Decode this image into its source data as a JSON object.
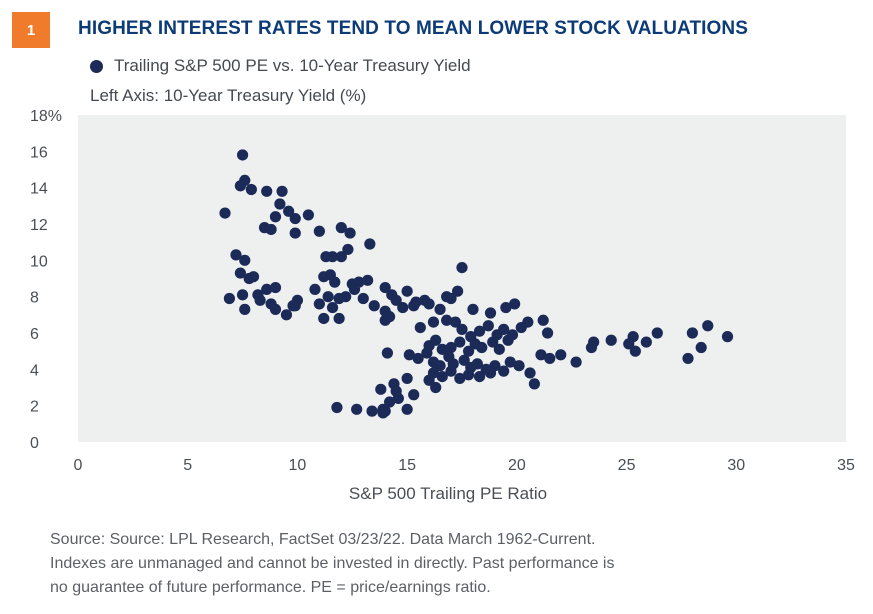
{
  "badge": "1",
  "title": "HIGHER INTEREST RATES TEND TO MEAN LOWER STOCK VALUATIONS",
  "legend_label": "Trailing S&P 500 PE vs. 10-Year Treasury Yield",
  "axis_note": "Left Axis: 10-Year Treasury Yield (%)",
  "footnotes": [
    "Source: Source: LPL Research, FactSet  03/23/22. Data March 1962-Current.",
    "Indexes are unmanaged and cannot be invested in directly. Past performance is",
    "no guarantee of future performance. PE = price/earnings ratio."
  ],
  "colors": {
    "title": "#0d3b78",
    "badge": "#f07b2b",
    "dot": "#1b2a57",
    "plot_bg": "#eef0f0"
  },
  "chart_data": {
    "type": "scatter",
    "title": "",
    "xlabel": "S&P 500 Trailing PE Ratio",
    "ylabel": "",
    "xlim": [
      0,
      35
    ],
    "ylim": [
      0,
      18
    ],
    "x_ticks": [
      "0",
      "5",
      "10",
      "15",
      "20",
      "25",
      "30",
      "35"
    ],
    "y_ticks": [
      "0",
      "2",
      "4",
      "6",
      "8",
      "10",
      "12",
      "14",
      "16",
      "18%"
    ],
    "grid": false,
    "series": [
      {
        "name": "Trailing S&P 500 PE vs. 10-Year Treasury Yield",
        "points": [
          [
            7.5,
            15.8
          ],
          [
            7.6,
            14.4
          ],
          [
            7.4,
            14.1
          ],
          [
            7.9,
            13.9
          ],
          [
            8.6,
            13.8
          ],
          [
            9.3,
            13.8
          ],
          [
            9.2,
            13.1
          ],
          [
            9.6,
            12.7
          ],
          [
            10.5,
            12.5
          ],
          [
            9.9,
            12.3
          ],
          [
            9.0,
            12.4
          ],
          [
            6.7,
            12.6
          ],
          [
            8.5,
            11.8
          ],
          [
            8.8,
            11.7
          ],
          [
            11.0,
            11.6
          ],
          [
            12.0,
            11.8
          ],
          [
            9.9,
            11.5
          ],
          [
            12.4,
            11.5
          ],
          [
            12.3,
            10.6
          ],
          [
            13.3,
            10.9
          ],
          [
            7.2,
            10.3
          ],
          [
            7.6,
            10.0
          ],
          [
            11.3,
            10.2
          ],
          [
            11.6,
            10.2
          ],
          [
            12.0,
            10.2
          ],
          [
            7.4,
            9.3
          ],
          [
            7.8,
            9.0
          ],
          [
            8.0,
            9.1
          ],
          [
            11.2,
            9.1
          ],
          [
            11.5,
            9.2
          ],
          [
            11.7,
            8.8
          ],
          [
            12.5,
            8.7
          ],
          [
            12.8,
            8.8
          ],
          [
            13.2,
            8.9
          ],
          [
            14.0,
            8.5
          ],
          [
            17.5,
            9.6
          ],
          [
            6.9,
            7.9
          ],
          [
            7.5,
            8.1
          ],
          [
            8.2,
            8.1
          ],
          [
            8.6,
            8.4
          ],
          [
            9.0,
            8.5
          ],
          [
            8.3,
            7.8
          ],
          [
            8.8,
            7.6
          ],
          [
            9.0,
            7.3
          ],
          [
            7.6,
            7.3
          ],
          [
            9.5,
            7.0
          ],
          [
            9.8,
            7.5
          ],
          [
            10.0,
            7.8
          ],
          [
            9.9,
            7.5
          ],
          [
            10.8,
            8.4
          ],
          [
            11.0,
            7.6
          ],
          [
            11.4,
            8.0
          ],
          [
            11.6,
            7.4
          ],
          [
            11.2,
            6.8
          ],
          [
            11.9,
            7.9
          ],
          [
            12.2,
            8.0
          ],
          [
            12.6,
            8.4
          ],
          [
            11.9,
            6.8
          ],
          [
            13.0,
            7.9
          ],
          [
            13.5,
            7.5
          ],
          [
            14.0,
            7.2
          ],
          [
            14.5,
            7.8
          ],
          [
            14.3,
            8.1
          ],
          [
            15.0,
            8.3
          ],
          [
            14.8,
            7.4
          ],
          [
            15.4,
            7.7
          ],
          [
            15.8,
            7.8
          ],
          [
            14.2,
            6.9
          ],
          [
            14.0,
            6.7
          ],
          [
            15.3,
            7.5
          ],
          [
            16.0,
            7.6
          ],
          [
            16.5,
            7.3
          ],
          [
            17.3,
            8.3
          ],
          [
            17.0,
            7.9
          ],
          [
            16.8,
            8.0
          ],
          [
            18.0,
            7.3
          ],
          [
            19.5,
            7.4
          ],
          [
            19.9,
            7.6
          ],
          [
            18.8,
            7.1
          ],
          [
            15.6,
            6.3
          ],
          [
            16.2,
            6.6
          ],
          [
            16.8,
            6.7
          ],
          [
            17.2,
            6.6
          ],
          [
            17.5,
            6.2
          ],
          [
            17.9,
            5.8
          ],
          [
            18.3,
            6.1
          ],
          [
            18.7,
            6.4
          ],
          [
            19.1,
            5.9
          ],
          [
            19.4,
            6.2
          ],
          [
            19.8,
            5.9
          ],
          [
            20.2,
            6.3
          ],
          [
            20.5,
            6.6
          ],
          [
            21.2,
            6.7
          ],
          [
            21.4,
            6.0
          ],
          [
            16.0,
            5.3
          ],
          [
            16.3,
            5.6
          ],
          [
            16.6,
            5.1
          ],
          [
            17.0,
            5.2
          ],
          [
            17.4,
            5.5
          ],
          [
            17.8,
            5.0
          ],
          [
            18.1,
            5.4
          ],
          [
            18.4,
            5.2
          ],
          [
            18.9,
            5.5
          ],
          [
            19.2,
            5.1
          ],
          [
            19.6,
            5.6
          ],
          [
            15.1,
            4.8
          ],
          [
            15.5,
            4.6
          ],
          [
            15.9,
            4.9
          ],
          [
            16.2,
            4.4
          ],
          [
            16.5,
            4.2
          ],
          [
            16.9,
            4.7
          ],
          [
            17.1,
            4.3
          ],
          [
            17.6,
            4.5
          ],
          [
            17.9,
            4.1
          ],
          [
            18.2,
            4.3
          ],
          [
            18.6,
            4.0
          ],
          [
            19.0,
            4.2
          ],
          [
            19.4,
            3.9
          ],
          [
            19.7,
            4.4
          ],
          [
            16.2,
            3.8
          ],
          [
            16.6,
            3.6
          ],
          [
            17.0,
            3.9
          ],
          [
            17.4,
            3.5
          ],
          [
            17.8,
            3.7
          ],
          [
            18.3,
            3.6
          ],
          [
            18.8,
            3.8
          ],
          [
            16.3,
            3.0
          ],
          [
            16.0,
            3.4
          ],
          [
            20.1,
            4.2
          ],
          [
            20.6,
            3.8
          ],
          [
            20.8,
            3.2
          ],
          [
            21.1,
            4.8
          ],
          [
            21.5,
            4.6
          ],
          [
            22.0,
            4.8
          ],
          [
            22.7,
            4.4
          ],
          [
            23.4,
            5.2
          ],
          [
            23.5,
            5.5
          ],
          [
            24.3,
            5.6
          ],
          [
            25.1,
            5.4
          ],
          [
            25.3,
            5.8
          ],
          [
            25.4,
            5.0
          ],
          [
            25.9,
            5.5
          ],
          [
            26.4,
            6.0
          ],
          [
            27.8,
            4.6
          ],
          [
            28.0,
            6.0
          ],
          [
            28.4,
            5.2
          ],
          [
            28.7,
            6.4
          ],
          [
            29.6,
            5.8
          ],
          [
            14.1,
            4.9
          ],
          [
            14.4,
            3.2
          ],
          [
            14.2,
            2.2
          ],
          [
            13.8,
            2.9
          ],
          [
            14.6,
            2.4
          ],
          [
            15.0,
            3.5
          ],
          [
            15.3,
            2.6
          ],
          [
            13.9,
            1.8
          ],
          [
            13.4,
            1.7
          ],
          [
            13.9,
            1.6
          ],
          [
            14.0,
            1.7
          ],
          [
            15.0,
            1.8
          ],
          [
            12.7,
            1.8
          ],
          [
            11.8,
            1.9
          ],
          [
            14.5,
            2.8
          ]
        ]
      }
    ]
  }
}
